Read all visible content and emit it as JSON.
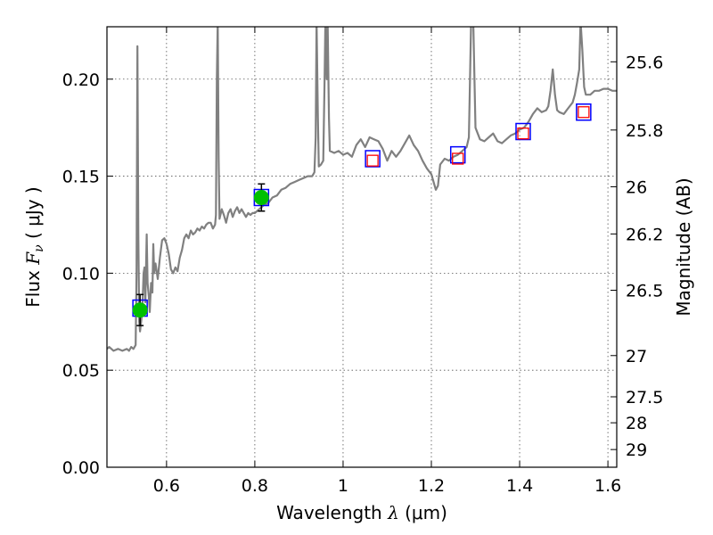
{
  "chart_data": {
    "type": "line",
    "xlabel_main": "Wavelength",
    "xlabel_symbol": "λ",
    "xlabel_unit": "(μm)",
    "ylabel_main": "Flux",
    "ylabel_symbol": "F",
    "ylabel_sub": "ν",
    "ylabel_unit": "( μJy )",
    "ylabel_right": "Magnitude (AB)",
    "xlim": [
      0.465,
      1.62
    ],
    "ylim": [
      0.0,
      0.227
    ],
    "grid": true,
    "x_ticks": [
      {
        "value": 0.6,
        "label": "0.6"
      },
      {
        "value": 0.8,
        "label": "0.8"
      },
      {
        "value": 1.0,
        "label": "1"
      },
      {
        "value": 1.2,
        "label": "1.2"
      },
      {
        "value": 1.4,
        "label": "1.4"
      },
      {
        "value": 1.6,
        "label": "1.6"
      }
    ],
    "y_ticks": [
      {
        "value": 0.0,
        "label": "0.00"
      },
      {
        "value": 0.05,
        "label": "0.05"
      },
      {
        "value": 0.1,
        "label": "0.10"
      },
      {
        "value": 0.15,
        "label": "0.15"
      },
      {
        "value": 0.2,
        "label": "0.20"
      }
    ],
    "mag_ticks": [
      {
        "mag": 25.6,
        "label": "25.6"
      },
      {
        "mag": 25.8,
        "label": "25.8"
      },
      {
        "mag": 26.0,
        "label": "26"
      },
      {
        "mag": 26.2,
        "label": "26.2"
      },
      {
        "mag": 26.5,
        "label": "26.5"
      },
      {
        "mag": 27.0,
        "label": "27"
      },
      {
        "mag": 27.5,
        "label": "27.5"
      },
      {
        "mag": 28.0,
        "label": "28"
      },
      {
        "mag": 29.0,
        "label": "29"
      }
    ],
    "spectrum": {
      "name": "model spectrum",
      "color": "#808080",
      "points": [
        [
          0.465,
          0.061
        ],
        [
          0.47,
          0.062
        ],
        [
          0.475,
          0.061
        ],
        [
          0.48,
          0.06
        ],
        [
          0.49,
          0.061
        ],
        [
          0.5,
          0.06
        ],
        [
          0.51,
          0.061
        ],
        [
          0.515,
          0.06
        ],
        [
          0.52,
          0.062
        ],
        [
          0.525,
          0.061
        ],
        [
          0.53,
          0.063
        ],
        [
          0.532,
          0.1
        ],
        [
          0.534,
          0.217
        ],
        [
          0.536,
          0.12
        ],
        [
          0.538,
          0.075
        ],
        [
          0.54,
          0.07
        ],
        [
          0.545,
          0.08
        ],
        [
          0.548,
          0.1
        ],
        [
          0.55,
          0.103
        ],
        [
          0.552,
          0.085
        ],
        [
          0.555,
          0.12
        ],
        [
          0.557,
          0.095
        ],
        [
          0.56,
          0.088
        ],
        [
          0.562,
          0.08
        ],
        [
          0.565,
          0.095
        ],
        [
          0.568,
          0.09
        ],
        [
          0.57,
          0.115
        ],
        [
          0.572,
          0.1
        ],
        [
          0.575,
          0.105
        ],
        [
          0.58,
          0.097
        ],
        [
          0.585,
          0.108
        ],
        [
          0.59,
          0.117
        ],
        [
          0.595,
          0.118
        ],
        [
          0.6,
          0.115
        ],
        [
          0.605,
          0.11
        ],
        [
          0.61,
          0.102
        ],
        [
          0.615,
          0.1
        ],
        [
          0.62,
          0.103
        ],
        [
          0.625,
          0.101
        ],
        [
          0.63,
          0.108
        ],
        [
          0.635,
          0.112
        ],
        [
          0.64,
          0.118
        ],
        [
          0.645,
          0.12
        ],
        [
          0.65,
          0.118
        ],
        [
          0.655,
          0.122
        ],
        [
          0.66,
          0.12
        ],
        [
          0.665,
          0.121
        ],
        [
          0.67,
          0.123
        ],
        [
          0.675,
          0.122
        ],
        [
          0.68,
          0.124
        ],
        [
          0.685,
          0.123
        ],
        [
          0.69,
          0.125
        ],
        [
          0.695,
          0.126
        ],
        [
          0.7,
          0.126
        ],
        [
          0.705,
          0.123
        ],
        [
          0.71,
          0.125
        ],
        [
          0.712,
          0.13
        ],
        [
          0.714,
          0.2
        ],
        [
          0.716,
          0.23
        ],
        [
          0.718,
          0.16
        ],
        [
          0.72,
          0.128
        ],
        [
          0.725,
          0.133
        ],
        [
          0.73,
          0.13
        ],
        [
          0.735,
          0.126
        ],
        [
          0.74,
          0.131
        ],
        [
          0.745,
          0.133
        ],
        [
          0.75,
          0.129
        ],
        [
          0.755,
          0.132
        ],
        [
          0.76,
          0.134
        ],
        [
          0.765,
          0.131
        ],
        [
          0.77,
          0.133
        ],
        [
          0.775,
          0.131
        ],
        [
          0.78,
          0.129
        ],
        [
          0.785,
          0.131
        ],
        [
          0.79,
          0.13
        ],
        [
          0.795,
          0.131
        ],
        [
          0.8,
          0.131
        ],
        [
          0.81,
          0.133
        ],
        [
          0.82,
          0.135
        ],
        [
          0.83,
          0.136
        ],
        [
          0.84,
          0.139
        ],
        [
          0.85,
          0.14
        ],
        [
          0.86,
          0.143
        ],
        [
          0.87,
          0.144
        ],
        [
          0.88,
          0.146
        ],
        [
          0.89,
          0.147
        ],
        [
          0.9,
          0.148
        ],
        [
          0.91,
          0.149
        ],
        [
          0.92,
          0.15
        ],
        [
          0.93,
          0.15
        ],
        [
          0.935,
          0.152
        ],
        [
          0.938,
          0.17
        ],
        [
          0.94,
          0.23
        ],
        [
          0.943,
          0.18
        ],
        [
          0.945,
          0.155
        ],
        [
          0.95,
          0.156
        ],
        [
          0.955,
          0.158
        ],
        [
          0.958,
          0.2
        ],
        [
          0.96,
          0.23
        ],
        [
          0.963,
          0.2
        ],
        [
          0.965,
          0.23
        ],
        [
          0.968,
          0.18
        ],
        [
          0.97,
          0.163
        ],
        [
          0.98,
          0.162
        ],
        [
          0.99,
          0.163
        ],
        [
          1.0,
          0.161
        ],
        [
          1.01,
          0.162
        ],
        [
          1.02,
          0.16
        ],
        [
          1.03,
          0.166
        ],
        [
          1.04,
          0.169
        ],
        [
          1.05,
          0.165
        ],
        [
          1.06,
          0.17
        ],
        [
          1.07,
          0.169
        ],
        [
          1.08,
          0.168
        ],
        [
          1.09,
          0.164
        ],
        [
          1.1,
          0.158
        ],
        [
          1.11,
          0.163
        ],
        [
          1.12,
          0.16
        ],
        [
          1.13,
          0.163
        ],
        [
          1.14,
          0.167
        ],
        [
          1.15,
          0.171
        ],
        [
          1.16,
          0.166
        ],
        [
          1.17,
          0.163
        ],
        [
          1.18,
          0.158
        ],
        [
          1.19,
          0.154
        ],
        [
          1.2,
          0.151
        ],
        [
          1.21,
          0.143
        ],
        [
          1.215,
          0.145
        ],
        [
          1.22,
          0.156
        ],
        [
          1.23,
          0.159
        ],
        [
          1.24,
          0.158
        ],
        [
          1.25,
          0.16
        ],
        [
          1.26,
          0.161
        ],
        [
          1.27,
          0.163
        ],
        [
          1.28,
          0.165
        ],
        [
          1.285,
          0.17
        ],
        [
          1.29,
          0.23
        ],
        [
          1.295,
          0.23
        ],
        [
          1.3,
          0.175
        ],
        [
          1.31,
          0.169
        ],
        [
          1.32,
          0.168
        ],
        [
          1.33,
          0.17
        ],
        [
          1.34,
          0.172
        ],
        [
          1.35,
          0.168
        ],
        [
          1.36,
          0.167
        ],
        [
          1.37,
          0.169
        ],
        [
          1.38,
          0.171
        ],
        [
          1.39,
          0.172
        ],
        [
          1.4,
          0.174
        ],
        [
          1.41,
          0.175
        ],
        [
          1.42,
          0.178
        ],
        [
          1.43,
          0.182
        ],
        [
          1.44,
          0.185
        ],
        [
          1.45,
          0.183
        ],
        [
          1.46,
          0.184
        ],
        [
          1.465,
          0.186
        ],
        [
          1.47,
          0.194
        ],
        [
          1.475,
          0.205
        ],
        [
          1.48,
          0.192
        ],
        [
          1.485,
          0.184
        ],
        [
          1.49,
          0.183
        ],
        [
          1.5,
          0.182
        ],
        [
          1.51,
          0.185
        ],
        [
          1.52,
          0.188
        ],
        [
          1.525,
          0.192
        ],
        [
          1.53,
          0.198
        ],
        [
          1.535,
          0.205
        ],
        [
          1.538,
          0.23
        ],
        [
          1.542,
          0.215
        ],
        [
          1.546,
          0.196
        ],
        [
          1.55,
          0.192
        ],
        [
          1.56,
          0.192
        ],
        [
          1.57,
          0.194
        ],
        [
          1.58,
          0.194
        ],
        [
          1.59,
          0.195
        ],
        [
          1.6,
          0.195
        ],
        [
          1.61,
          0.194
        ],
        [
          1.62,
          0.194
        ]
      ]
    },
    "detections": [
      {
        "x": 0.54,
        "y": 0.081,
        "yerr_low": 0.008,
        "yerr_high": 0.008,
        "model_y": 0.082
      },
      {
        "x": 0.815,
        "y": 0.139,
        "yerr_low": 0.007,
        "yerr_high": 0.007,
        "model_y": 0.139
      }
    ],
    "upper_points": [
      {
        "x": 1.067,
        "model_y": 0.159,
        "value": 0.158
      },
      {
        "x": 1.26,
        "model_y": 0.161,
        "value": 0.159
      },
      {
        "x": 1.408,
        "model_y": 0.173,
        "value": 0.172
      },
      {
        "x": 1.545,
        "model_y": 0.183,
        "value": 0.183
      }
    ],
    "colors": {
      "detection_fill": "#00c000",
      "model_box": "#0000ff",
      "open_marker": "#ff0000",
      "errorbar": "#000000",
      "grid": "#555555"
    }
  }
}
